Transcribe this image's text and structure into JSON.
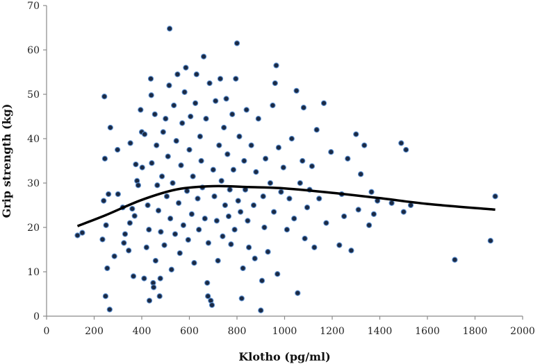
{
  "chart_data": {
    "type": "scatter",
    "title": "",
    "xlabel": "Klotho (pg/ml)",
    "ylabel": "Grip strength (kg)",
    "xlim": [
      0,
      2000
    ],
    "ylim": [
      0,
      70
    ],
    "x_ticks": [
      "0",
      "200",
      "400",
      "600",
      "800",
      "1000",
      "1200",
      "1400",
      "1600",
      "1800",
      "2000"
    ],
    "y_ticks": [
      "0",
      "10",
      "20",
      "30",
      "40",
      "50",
      "60",
      "70"
    ],
    "grid": false,
    "legend": "none",
    "colors": {
      "point_fill": "#1b2a44",
      "point_edge": "#5b8fd0",
      "trend": "#000000"
    },
    "points": [
      [
        130,
        18.2
      ],
      [
        150,
        18.8
      ],
      [
        235,
        17.3
      ],
      [
        240,
        26.0
      ],
      [
        243,
        49.5
      ],
      [
        245,
        35.5
      ],
      [
        248,
        4.5
      ],
      [
        255,
        10.8
      ],
      [
        250,
        20.5
      ],
      [
        265,
        1.5
      ],
      [
        268,
        42.5
      ],
      [
        260,
        27.5
      ],
      [
        285,
        13.5
      ],
      [
        298,
        37.5
      ],
      [
        300,
        27.5
      ],
      [
        320,
        24.5
      ],
      [
        325,
        16.5
      ],
      [
        330,
        18.5
      ],
      [
        345,
        14.8
      ],
      [
        350,
        21.0
      ],
      [
        352,
        39.0
      ],
      [
        365,
        9.0
      ],
      [
        360,
        24.2
      ],
      [
        370,
        22.6
      ],
      [
        375,
        34.2
      ],
      [
        380,
        30.5
      ],
      [
        385,
        29.5
      ],
      [
        395,
        46.5
      ],
      [
        400,
        41.5
      ],
      [
        402,
        33.5
      ],
      [
        410,
        8.5
      ],
      [
        412,
        41.0
      ],
      [
        420,
        15.5
      ],
      [
        425,
        25.0
      ],
      [
        430,
        19.5
      ],
      [
        432,
        3.5
      ],
      [
        438,
        53.5
      ],
      [
        440,
        49.8
      ],
      [
        442,
        34.5
      ],
      [
        448,
        7.5
      ],
      [
        450,
        6.5
      ],
      [
        455,
        45.5
      ],
      [
        458,
        12.5
      ],
      [
        462,
        38.5
      ],
      [
        465,
        29.5
      ],
      [
        470,
        23.8
      ],
      [
        475,
        4.5
      ],
      [
        478,
        8.5
      ],
      [
        480,
        19.0
      ],
      [
        485,
        31.5
      ],
      [
        490,
        41.5
      ],
      [
        495,
        16.0
      ],
      [
        500,
        44.5
      ],
      [
        505,
        27.0
      ],
      [
        510,
        36.0
      ],
      [
        515,
        52.0
      ],
      [
        517,
        64.8
      ],
      [
        520,
        22.0
      ],
      [
        525,
        10.5
      ],
      [
        530,
        30.0
      ],
      [
        535,
        47.5
      ],
      [
        540,
        18.5
      ],
      [
        545,
        39.5
      ],
      [
        550,
        54.5
      ],
      [
        555,
        25.5
      ],
      [
        560,
        14.2
      ],
      [
        565,
        34.0
      ],
      [
        570,
        43.5
      ],
      [
        575,
        20.5
      ],
      [
        580,
        50.5
      ],
      [
        585,
        56.0
      ],
      [
        590,
        28.2
      ],
      [
        595,
        17.2
      ],
      [
        600,
        37.5
      ],
      [
        605,
        45.0
      ],
      [
        610,
        23.0
      ],
      [
        615,
        31.5
      ],
      [
        620,
        12.0
      ],
      [
        625,
        48.0
      ],
      [
        630,
        54.5
      ],
      [
        635,
        26.5
      ],
      [
        640,
        19.5
      ],
      [
        645,
        40.5
      ],
      [
        650,
        35.0
      ],
      [
        655,
        29.0
      ],
      [
        660,
        58.5
      ],
      [
        665,
        22.0
      ],
      [
        670,
        44.5
      ],
      [
        675,
        7.5
      ],
      [
        678,
        4.5
      ],
      [
        680,
        16.5
      ],
      [
        685,
        52.5
      ],
      [
        690,
        3.5
      ],
      [
        695,
        2.5
      ],
      [
        700,
        33.0
      ],
      [
        705,
        27.0
      ],
      [
        710,
        48.5
      ],
      [
        715,
        21.5
      ],
      [
        720,
        12.5
      ],
      [
        725,
        38.5
      ],
      [
        730,
        53.5
      ],
      [
        735,
        30.5
      ],
      [
        740,
        18.0
      ],
      [
        745,
        42.5
      ],
      [
        750,
        25.0
      ],
      [
        755,
        49.0
      ],
      [
        760,
        36.5
      ],
      [
        765,
        22.5
      ],
      [
        770,
        28.5
      ],
      [
        775,
        16.2
      ],
      [
        780,
        45.5
      ],
      [
        785,
        33.0
      ],
      [
        790,
        19.5
      ],
      [
        795,
        53.5
      ],
      [
        800,
        61.5
      ],
      [
        805,
        26.0
      ],
      [
        810,
        40.5
      ],
      [
        815,
        23.5
      ],
      [
        820,
        4.0
      ],
      [
        825,
        10.8
      ],
      [
        830,
        35.0
      ],
      [
        835,
        28.5
      ],
      [
        840,
        46.5
      ],
      [
        845,
        21.5
      ],
      [
        850,
        15.5
      ],
      [
        860,
        38.5
      ],
      [
        870,
        25.0
      ],
      [
        875,
        13.0
      ],
      [
        880,
        32.5
      ],
      [
        890,
        44.5
      ],
      [
        900,
        1.3
      ],
      [
        905,
        8.0
      ],
      [
        910,
        27.0
      ],
      [
        915,
        20.0
      ],
      [
        920,
        35.5
      ],
      [
        930,
        14.5
      ],
      [
        940,
        30.0
      ],
      [
        950,
        47.5
      ],
      [
        955,
        23.5
      ],
      [
        960,
        52.5
      ],
      [
        965,
        56.5
      ],
      [
        970,
        9.5
      ],
      [
        975,
        38.0
      ],
      [
        985,
        28.0
      ],
      [
        995,
        33.5
      ],
      [
        1010,
        19.5
      ],
      [
        1020,
        26.5
      ],
      [
        1030,
        40.0
      ],
      [
        1040,
        22.0
      ],
      [
        1050,
        50.8
      ],
      [
        1055,
        5.2
      ],
      [
        1065,
        30.0
      ],
      [
        1075,
        35.0
      ],
      [
        1080,
        47.0
      ],
      [
        1085,
        17.5
      ],
      [
        1095,
        24.5
      ],
      [
        1105,
        28.5
      ],
      [
        1115,
        33.8
      ],
      [
        1125,
        15.5
      ],
      [
        1135,
        42.0
      ],
      [
        1145,
        26.5
      ],
      [
        1165,
        48.0
      ],
      [
        1175,
        21.0
      ],
      [
        1195,
        37.0
      ],
      [
        1230,
        16.0
      ],
      [
        1240,
        27.5
      ],
      [
        1250,
        22.5
      ],
      [
        1265,
        35.5
      ],
      [
        1280,
        14.8
      ],
      [
        1300,
        41.0
      ],
      [
        1310,
        24.0
      ],
      [
        1320,
        32.0
      ],
      [
        1335,
        38.5
      ],
      [
        1355,
        20.5
      ],
      [
        1365,
        28.0
      ],
      [
        1375,
        23.0
      ],
      [
        1390,
        26.0
      ],
      [
        1450,
        25.5
      ],
      [
        1490,
        39.0
      ],
      [
        1500,
        23.5
      ],
      [
        1510,
        37.5
      ],
      [
        1530,
        25.0
      ],
      [
        1715,
        12.7
      ],
      [
        1865,
        17.0
      ],
      [
        1885,
        27.0
      ]
    ],
    "trend_line": [
      [
        130,
        20.3
      ],
      [
        250,
        22.8
      ],
      [
        400,
        26.2
      ],
      [
        550,
        28.6
      ],
      [
        700,
        29.3
      ],
      [
        850,
        29.1
      ],
      [
        1000,
        28.8
      ],
      [
        1200,
        27.8
      ],
      [
        1400,
        26.6
      ],
      [
        1600,
        25.3
      ],
      [
        1885,
        24.0
      ]
    ]
  }
}
